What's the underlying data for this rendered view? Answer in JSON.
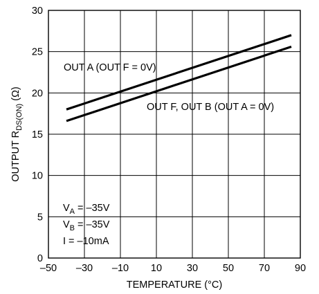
{
  "chart_data": {
    "type": "line",
    "xlabel": "TEMPERATURE (°C)",
    "ylabel": {
      "main": "OUTPUT R",
      "subscript": "DS(ON)",
      "unit": " (Ω)"
    },
    "xlim": [
      -50,
      90
    ],
    "ylim": [
      0,
      30
    ],
    "xticks": [
      -50,
      -30,
      -10,
      10,
      30,
      50,
      70,
      90
    ],
    "yticks": [
      0,
      5,
      10,
      15,
      20,
      25,
      30
    ],
    "xtick_labels": [
      "–50",
      "–30",
      "–10",
      "10",
      "30",
      "50",
      "70",
      "90"
    ],
    "ytick_labels": [
      "0",
      "5",
      "10",
      "15",
      "20",
      "25",
      "30"
    ],
    "grid": true,
    "series": [
      {
        "name": "OUT A (OUT F = 0V)",
        "x": [
          -40,
          85
        ],
        "y": [
          18.0,
          27.0
        ]
      },
      {
        "name": "OUT F, OUT B (OUT A = 0V)",
        "x": [
          -40,
          85
        ],
        "y": [
          16.6,
          25.6
        ]
      }
    ],
    "conditions": [
      {
        "symbol": "V",
        "subscript": "A",
        "value": " = –35V"
      },
      {
        "symbol": "V",
        "subscript": "B",
        "value": " = –35V"
      },
      {
        "symbol": "I",
        "subscript": "",
        "value": " = –10mA"
      }
    ]
  }
}
